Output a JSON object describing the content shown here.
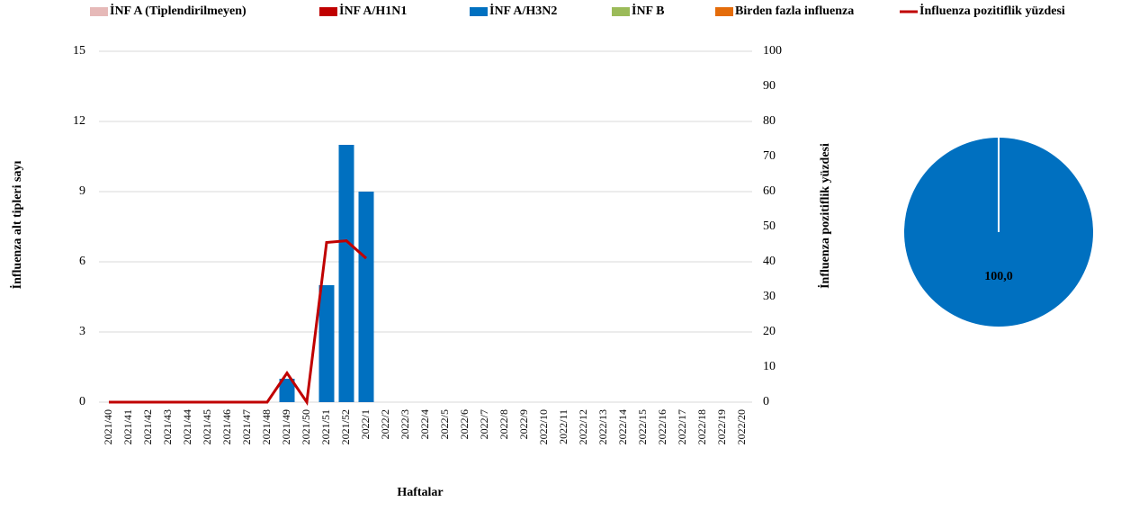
{
  "chart_data": [
    {
      "type": "bar",
      "stacked": true,
      "grid": true,
      "y_label": "İnfluenza alt tipleri sayı",
      "y2_label": "İnfluenza pozitiflik yüzdesi",
      "x_label": "Haftalar",
      "categories": [
        "2021/40",
        "2021/41",
        "2021/42",
        "2021/43",
        "2021/44",
        "2021/45",
        "2021/46",
        "2021/47",
        "2021/48",
        "2021/49",
        "2021/50",
        "2021/51",
        "2021/52",
        "2022/1",
        "2022/2",
        "2022/3",
        "2022/4",
        "2022/5",
        "2022/6",
        "2022/7",
        "2022/8",
        "2022/9",
        "2022/10",
        "2022/11",
        "2022/12",
        "2022/13",
        "2022/14",
        "2022/15",
        "2022/16",
        "2022/17",
        "2022/18",
        "2022/19",
        "2022/20"
      ],
      "series": [
        {
          "name": "İNF A (Tiplendirilmeyen)",
          "color": "#e6b9b8",
          "values": [
            0,
            0,
            0,
            0,
            0,
            0,
            0,
            0,
            0,
            0,
            0,
            0,
            0,
            0,
            null,
            null,
            null,
            null,
            null,
            null,
            null,
            null,
            null,
            null,
            null,
            null,
            null,
            null,
            null,
            null,
            null,
            null,
            null
          ]
        },
        {
          "name": "İNF A/H1N1",
          "color": "#c00000",
          "values": [
            0,
            0,
            0,
            0,
            0,
            0,
            0,
            0,
            0,
            0,
            0,
            0,
            0,
            0,
            null,
            null,
            null,
            null,
            null,
            null,
            null,
            null,
            null,
            null,
            null,
            null,
            null,
            null,
            null,
            null,
            null,
            null,
            null
          ]
        },
        {
          "name": "İNF A/H3N2",
          "color": "#0070c0",
          "values": [
            0,
            0,
            0,
            0,
            0,
            0,
            0,
            0,
            0,
            1,
            0,
            5,
            11,
            9,
            null,
            null,
            null,
            null,
            null,
            null,
            null,
            null,
            null,
            null,
            null,
            null,
            null,
            null,
            null,
            null,
            null,
            null,
            null
          ]
        },
        {
          "name": "İNF B",
          "color": "#9bbb59",
          "values": [
            0,
            0,
            0,
            0,
            0,
            0,
            0,
            0,
            0,
            0,
            0,
            0,
            0,
            0,
            null,
            null,
            null,
            null,
            null,
            null,
            null,
            null,
            null,
            null,
            null,
            null,
            null,
            null,
            null,
            null,
            null,
            null,
            null
          ]
        },
        {
          "name": "Birden fazla influenza",
          "color": "#e46c0a",
          "values": [
            0,
            0,
            0,
            0,
            0,
            0,
            0,
            0,
            0,
            0,
            0,
            0,
            0,
            0,
            null,
            null,
            null,
            null,
            null,
            null,
            null,
            null,
            null,
            null,
            null,
            null,
            null,
            null,
            null,
            null,
            null,
            null,
            null
          ]
        },
        {
          "name": "İnfluenza pozitiflik yüzdesi",
          "type": "line",
          "axis": "y2",
          "color": "#c00000",
          "values": [
            0,
            0,
            0,
            0,
            0,
            0,
            0,
            0,
            0,
            8.3,
            0,
            45.5,
            46,
            41,
            null,
            null,
            null,
            null,
            null,
            null,
            null,
            null,
            null,
            null,
            null,
            null,
            null,
            null,
            null,
            null,
            null,
            null,
            null
          ]
        }
      ],
      "ylim": [
        0,
        15
      ],
      "yticks": [
        0,
        3,
        6,
        9,
        12,
        15
      ],
      "y2lim": [
        0,
        100
      ],
      "y2ticks": [
        0,
        10,
        20,
        30,
        40,
        50,
        60,
        70,
        80,
        90,
        100
      ]
    },
    {
      "type": "pie",
      "values": [
        100
      ],
      "value_labels": [
        "100,0"
      ],
      "colors": [
        "#0070c0"
      ]
    }
  ]
}
